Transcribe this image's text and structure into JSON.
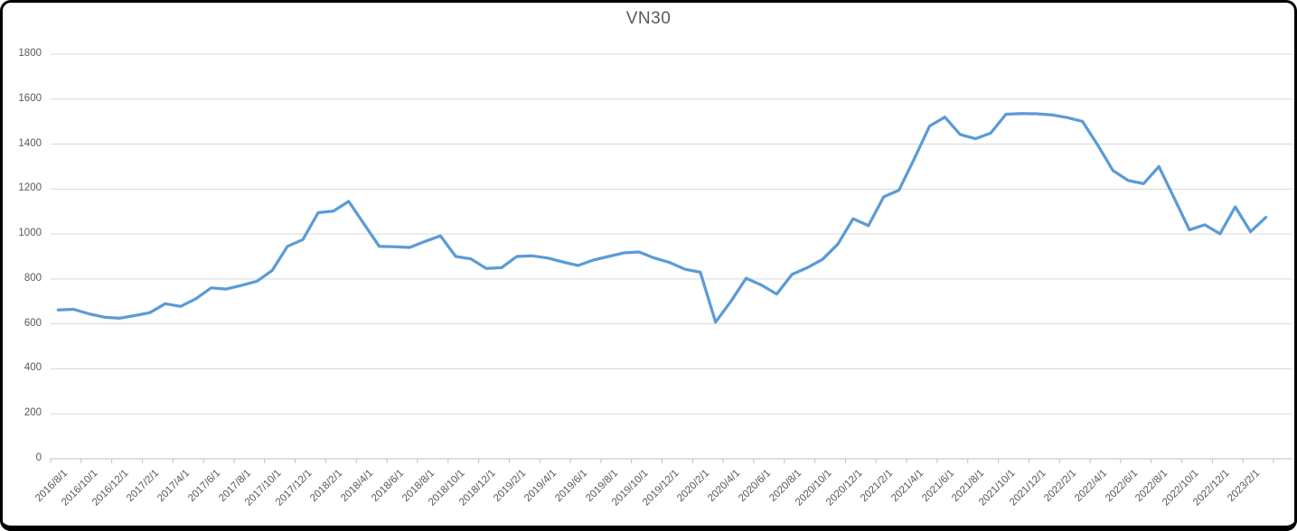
{
  "chart_data": {
    "type": "line",
    "title": "VN30",
    "legend": "none",
    "grid": "horizontal",
    "ylim": [
      0,
      1800
    ],
    "y_ticks": [
      0,
      200,
      400,
      600,
      800,
      1000,
      1200,
      1400,
      1600,
      1800
    ],
    "x_label_interval": 2,
    "x_labels": [
      "2016/8/1",
      "2016/10/1",
      "2016/12/1",
      "2017/2/1",
      "2017/4/1",
      "2017/6/1",
      "2017/8/1",
      "2017/10/1",
      "2017/12/1",
      "2018/2/1",
      "2018/4/1",
      "2018/6/1",
      "2018/8/1",
      "2018/10/1",
      "2018/12/1",
      "2019/2/1",
      "2019/4/1",
      "2019/6/1",
      "2019/8/1",
      "2019/10/1",
      "2019/12/1",
      "2020/2/1",
      "2020/4/1",
      "2020/6/1",
      "2020/8/1",
      "2020/10/1",
      "2020/12/1",
      "2021/2/1",
      "2021/4/1",
      "2021/6/1",
      "2021/8/1",
      "2021/10/1",
      "2021/12/1",
      "2022/2/1",
      "2022/4/1",
      "2022/6/1",
      "2022/8/1",
      "2022/10/1",
      "2022/12/1",
      "2023/2/1"
    ],
    "series": [
      {
        "name": "VN30",
        "values": [
          662,
          665,
          645,
          630,
          625,
          637,
          650,
          690,
          678,
          712,
          760,
          755,
          772,
          790,
          838,
          945,
          975,
          1095,
          1102,
          1145,
          1045,
          945,
          943,
          940,
          967,
          992,
          900,
          889,
          847,
          850,
          900,
          903,
          893,
          876,
          860,
          884,
          900,
          916,
          920,
          893,
          873,
          843,
          830,
          608,
          700,
          803,
          773,
          733,
          820,
          850,
          887,
          955,
          1068,
          1037,
          1165,
          1195,
          1335,
          1480,
          1520,
          1443,
          1424,
          1449,
          1533,
          1536,
          1535,
          1530,
          1518,
          1501,
          1396,
          1282,
          1238,
          1224,
          1300,
          1160,
          1018,
          1041,
          1001,
          1121,
          1010,
          1074
        ]
      }
    ],
    "colors": {
      "line": "#5B9BD5",
      "gridline": "#D9D9D9",
      "axis": "#BFBFBF",
      "label_text": "#595959",
      "title_text": "#595959",
      "frame_border": "#000000",
      "background": "#FFFFFF"
    }
  }
}
